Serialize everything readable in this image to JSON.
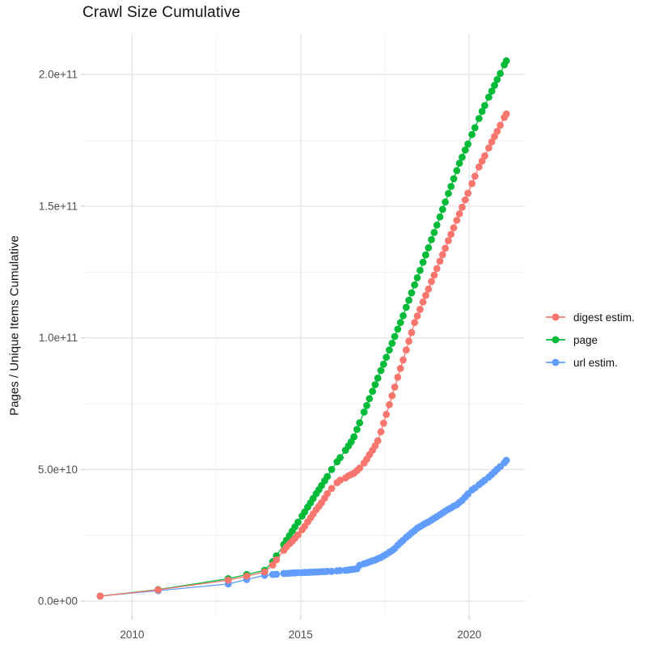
{
  "title": "Crawl Size Cumulative",
  "axes": {
    "y_label": "Pages / Unique Items Cumulative",
    "y_ticks": [
      {
        "label": "0.0e+00",
        "value": 0
      },
      {
        "label": "5.0e+10",
        "value": 50000000000.0
      },
      {
        "label": "1.0e+11",
        "value": 100000000000.0
      },
      {
        "label": "1.5e+11",
        "value": 150000000000.0
      },
      {
        "label": "2.0e+11",
        "value": 200000000000.0
      }
    ],
    "x_ticks": [
      {
        "label": "2010",
        "value": 2010
      },
      {
        "label": "2015",
        "value": 2015
      },
      {
        "label": "2020",
        "value": 2020
      }
    ]
  },
  "legend": {
    "entries": [
      {
        "label": "digest estim.",
        "color": "#F8766D",
        "icon": "point-with-line"
      },
      {
        "label": "page",
        "color": "#00BA38",
        "icon": "point-with-line"
      },
      {
        "label": "url estim.",
        "color": "#619CFF",
        "icon": "point-with-line"
      }
    ]
  },
  "colors": {
    "digest": "#F8766D",
    "page": "#00BA38",
    "url": "#619CFF",
    "grid_major": "#e4e4e4",
    "grid_minor": "#f0f0f0",
    "tick_mark": "#c9c9c9",
    "tick_label": "#4d4d4d",
    "background": "#ffffff"
  },
  "chart_data": {
    "type": "scatter",
    "title": "Crawl Size Cumulative",
    "xlabel": "",
    "ylabel": "Pages / Unique Items Cumulative",
    "legend_position": "right",
    "grid": true,
    "xlim": [
      2008.6,
      2021.65
    ],
    "ylim": [
      -5500000000.0,
      215400000000.0
    ],
    "x_major_gridlines": [
      2010,
      2015,
      2020
    ],
    "x_minor_gridlines": [
      2012.5,
      2017.5
    ],
    "y_major_gridlines": [
      0,
      50000000000.0,
      100000000000.0,
      150000000000.0,
      200000000000.0
    ],
    "y_minor_gridlines": [
      25000000000.0,
      75000000000.0,
      125000000000.0,
      175000000000.0
    ],
    "y_scale": 1000000000.0,
    "y_values_unit": "items, in units of 1e9 (multiply by y_scale for absolute counts; values estimated from plot)",
    "x_unit": "year (decimal, approximate crawl dates)",
    "draw_order": [
      "page",
      "url estim.",
      "digest estim."
    ],
    "x": [
      2009.05,
      2010.77,
      2012.85,
      2013.4,
      2013.93,
      2014.17,
      2014.28,
      2014.5,
      2014.58,
      2014.67,
      2014.75,
      2014.83,
      2014.92,
      2015.04,
      2015.12,
      2015.21,
      2015.29,
      2015.37,
      2015.46,
      2015.54,
      2015.62,
      2015.71,
      2015.79,
      2015.92,
      2016.08,
      2016.17,
      2016.33,
      2016.42,
      2016.5,
      2016.58,
      2016.67,
      2016.75,
      2016.88,
      2016.96,
      2017.04,
      2017.13,
      2017.21,
      2017.29,
      2017.38,
      2017.46,
      2017.54,
      2017.63,
      2017.71,
      2017.79,
      2017.88,
      2017.96,
      2018.04,
      2018.13,
      2018.21,
      2018.29,
      2018.38,
      2018.46,
      2018.54,
      2018.63,
      2018.71,
      2018.79,
      2018.88,
      2018.96,
      2019.04,
      2019.13,
      2019.21,
      2019.29,
      2019.38,
      2019.46,
      2019.54,
      2019.63,
      2019.71,
      2019.79,
      2019.88,
      2019.96,
      2020.08,
      2020.17,
      2020.29,
      2020.38,
      2020.46,
      2020.58,
      2020.67,
      2020.75,
      2020.83,
      2020.92,
      2021.04,
      2021.1
    ],
    "series": [
      {
        "name": "digest estim.",
        "color": "#F8766D",
        "values": [
          1.9,
          4.3,
          8.0,
          9.5,
          11.1,
          13.7,
          15.7,
          19.3,
          20.6,
          21.8,
          22.8,
          23.9,
          25.2,
          27.1,
          28.4,
          30.1,
          31.6,
          33.1,
          34.7,
          36.0,
          37.4,
          39.1,
          40.8,
          42.8,
          45.0,
          45.9,
          46.8,
          47.6,
          48.1,
          48.6,
          49.6,
          50.5,
          52.4,
          53.9,
          55.6,
          57.3,
          59.0,
          60.9,
          64.3,
          67.6,
          70.9,
          74.6,
          78.0,
          81.3,
          85.0,
          88.4,
          91.6,
          95.4,
          98.7,
          102.0,
          105.8,
          108.3,
          110.8,
          113.6,
          116.1,
          118.5,
          121.4,
          123.8,
          126.3,
          129.1,
          131.6,
          134.0,
          136.9,
          139.3,
          141.8,
          144.6,
          147.1,
          149.6,
          152.4,
          154.9,
          158.6,
          161.4,
          164.9,
          167.1,
          169.1,
          172.1,
          174.4,
          176.5,
          178.4,
          180.7,
          183.7,
          185.0
        ]
      },
      {
        "name": "page",
        "color": "#00BA38",
        "values": [
          1.9,
          4.4,
          8.5,
          10.1,
          11.7,
          15.0,
          17.2,
          21.5,
          23.2,
          24.9,
          26.6,
          28.2,
          30.0,
          32.3,
          33.9,
          35.7,
          37.3,
          39.0,
          40.8,
          42.3,
          43.9,
          45.7,
          47.3,
          50.0,
          52.9,
          54.5,
          57.3,
          59.0,
          60.5,
          62.4,
          65.2,
          67.7,
          71.8,
          74.3,
          76.9,
          79.7,
          82.2,
          84.7,
          87.6,
          90.0,
          92.6,
          95.4,
          97.9,
          100.5,
          103.3,
          105.8,
          108.4,
          111.6,
          114.3,
          117.1,
          120.1,
          122.8,
          125.6,
          128.7,
          131.5,
          134.2,
          137.3,
          140.0,
          142.8,
          145.9,
          148.8,
          151.6,
          154.8,
          157.5,
          160.4,
          163.5,
          166.3,
          168.6,
          171.3,
          173.6,
          177.2,
          179.8,
          183.3,
          186.0,
          188.2,
          191.4,
          193.7,
          195.9,
          198.1,
          200.4,
          203.7,
          205.2
        ]
      },
      {
        "name": "url estim.",
        "color": "#619CFF",
        "values": [
          1.9,
          4.0,
          6.5,
          8.2,
          9.8,
          10.1,
          10.2,
          10.5,
          10.5,
          10.6,
          10.7,
          10.7,
          10.8,
          10.8,
          10.9,
          10.9,
          11.0,
          11.0,
          11.1,
          11.1,
          11.2,
          11.2,
          11.3,
          11.3,
          11.5,
          11.6,
          11.7,
          11.8,
          12.0,
          12.1,
          12.3,
          13.6,
          14.2,
          14.5,
          14.9,
          15.3,
          15.6,
          16.1,
          16.6,
          17.2,
          17.8,
          18.6,
          19.2,
          20.0,
          21.2,
          22.2,
          23.1,
          24.2,
          25.0,
          25.9,
          26.8,
          27.7,
          28.3,
          29.0,
          29.6,
          30.1,
          30.8,
          31.5,
          32.1,
          32.8,
          33.5,
          34.2,
          34.9,
          35.4,
          36.1,
          36.6,
          37.5,
          38.3,
          39.5,
          40.7,
          42.2,
          43.0,
          44.2,
          45.1,
          45.9,
          47.1,
          48.1,
          49.1,
          50.1,
          51.1,
          52.5,
          53.5
        ]
      }
    ]
  }
}
